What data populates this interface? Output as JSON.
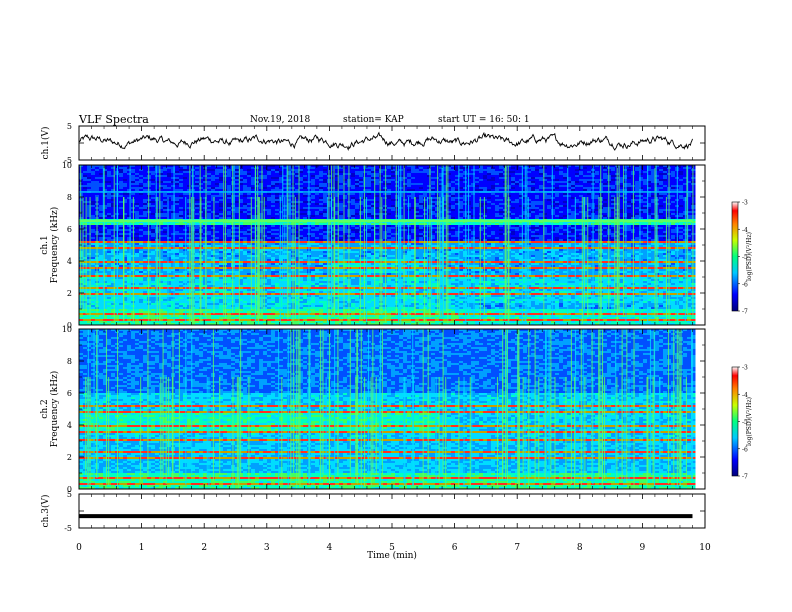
{
  "header": {
    "title": "VLF Spectra",
    "date": "Nov.19, 2018",
    "station": "station= KAP",
    "start": "start  UT =   16: 50: 1"
  },
  "chart_data": [
    {
      "type": "line",
      "panel": "ch1-waveform",
      "ylabel": "ch.1(V)",
      "ylim": [
        -5,
        5
      ],
      "yticks": [
        "5",
        "-5"
      ],
      "xlim": [
        0,
        10
      ],
      "description_of_values": "noisy waveform fluctuating roughly between -2 and +3 V",
      "color": "#000000"
    },
    {
      "type": "heatmap",
      "panel": "ch1-spectrogram",
      "ylabel": "ch.1 Frequency (kHz)",
      "ylabel_line1": "ch.1",
      "ylabel_line2": "Frequency (kHz)",
      "ylim": [
        0,
        10
      ],
      "yticks": [
        "0",
        "2",
        "4",
        "6",
        "8",
        "10"
      ],
      "xlim": [
        0,
        10
      ],
      "colorbar": {
        "label": "log(PSD)(V²/Hz)",
        "range": [
          -7,
          -3
        ],
        "ticks": [
          "-3",
          "-4",
          "-5",
          "-6",
          "-7"
        ]
      }
    },
    {
      "type": "heatmap",
      "panel": "ch2-spectrogram",
      "ylabel": "ch.2 Frequency (kHz)",
      "ylabel_line1": "ch.2",
      "ylabel_line2": "Frequency (kHz)",
      "ylim": [
        0,
        10
      ],
      "yticks": [
        "0",
        "2",
        "4",
        "6",
        "8",
        "10"
      ],
      "xlim": [
        0,
        10
      ],
      "colorbar": {
        "label": "log(PSD)(V²/Hz)",
        "range": [
          -7,
          -3
        ],
        "ticks": [
          "-3",
          "-4",
          "-5",
          "-6",
          "-7"
        ]
      }
    },
    {
      "type": "line",
      "panel": "ch3-waveform",
      "ylabel": "ch.3(V)",
      "ylim": [
        -5,
        5
      ],
      "yticks": [
        "5",
        "-5"
      ],
      "xlim": [
        0,
        10
      ],
      "description_of_values": "flat line at about -1.5 V",
      "constant_value": -1.5,
      "color": "#000000"
    }
  ],
  "xaxis": {
    "label": "Time (min)",
    "ticks": [
      "0",
      "1",
      "2",
      "3",
      "4",
      "5",
      "6",
      "7",
      "8",
      "9",
      "10"
    ],
    "data_end": 9.8
  }
}
